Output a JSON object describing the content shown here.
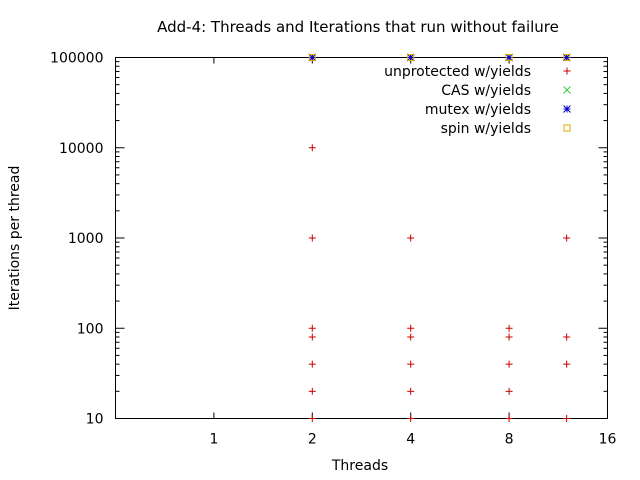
{
  "chart_data": {
    "type": "scatter",
    "title": "Add-4: Threads and Iterations that run without failure",
    "xlabel": "Threads",
    "ylabel": "Iterations per thread",
    "xscale": "log2",
    "yscale": "log10",
    "xlim": [
      0.5,
      16
    ],
    "ylim": [
      10,
      100000
    ],
    "xticks": [
      1,
      2,
      4,
      8,
      16
    ],
    "xtick_labels": [
      "1",
      "2",
      "4",
      "8",
      "16"
    ],
    "yticks": [
      10,
      100,
      1000,
      10000,
      100000
    ],
    "ytick_labels": [
      "10",
      "100",
      "1000",
      "10000",
      "100000"
    ],
    "grid": false,
    "legend_position": "top-right",
    "series": [
      {
        "name": "unprotected w/yields",
        "marker": "plus",
        "color": "#cc0000",
        "points": [
          [
            2,
            10
          ],
          [
            2,
            20
          ],
          [
            2,
            40
          ],
          [
            2,
            80
          ],
          [
            2,
            100
          ],
          [
            2,
            1000
          ],
          [
            2,
            10000
          ],
          [
            2,
            100000
          ],
          [
            4,
            10
          ],
          [
            4,
            20
          ],
          [
            4,
            40
          ],
          [
            4,
            80
          ],
          [
            4,
            100
          ],
          [
            4,
            1000
          ],
          [
            4,
            100000
          ],
          [
            8,
            10
          ],
          [
            8,
            20
          ],
          [
            8,
            40
          ],
          [
            8,
            80
          ],
          [
            8,
            100
          ],
          [
            8,
            100000
          ],
          [
            12,
            10
          ],
          [
            12,
            40
          ],
          [
            12,
            80
          ],
          [
            12,
            1000
          ],
          [
            12,
            100000
          ]
        ]
      },
      {
        "name": "CAS w/yields",
        "marker": "cross",
        "color": "#33cc33",
        "points": [
          [
            2,
            100000
          ],
          [
            4,
            100000
          ],
          [
            8,
            100000
          ],
          [
            12,
            100000
          ]
        ]
      },
      {
        "name": "mutex w/yields",
        "marker": "star",
        "color": "#0000cc",
        "points": [
          [
            2,
            100000
          ],
          [
            4,
            100000
          ],
          [
            8,
            100000
          ],
          [
            12,
            100000
          ]
        ]
      },
      {
        "name": "spin w/yields",
        "marker": "square",
        "color": "#e6a800",
        "points": [
          [
            2,
            100000
          ],
          [
            4,
            100000
          ],
          [
            8,
            100000
          ],
          [
            12,
            100000
          ]
        ]
      }
    ]
  }
}
